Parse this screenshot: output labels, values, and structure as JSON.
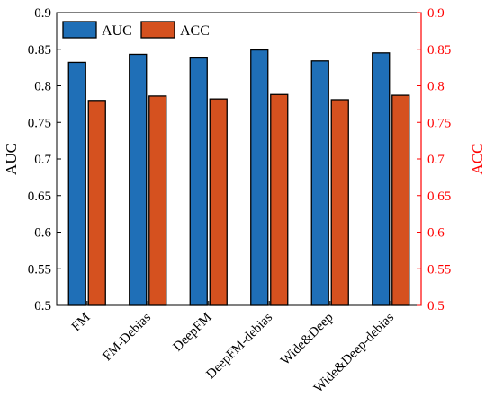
{
  "chart_data": {
    "type": "bar",
    "categories": [
      "FM",
      "FM-Debias",
      "DeepFM",
      "DeepFM-debias",
      "Wide&Deep",
      "Wide&Deep-debias"
    ],
    "series": [
      {
        "name": "AUC",
        "color": "#1F6FB7",
        "axis": "left",
        "values": [
          0.832,
          0.843,
          0.838,
          0.849,
          0.834,
          0.845
        ]
      },
      {
        "name": "ACC",
        "color": "#D5511F",
        "axis": "right",
        "values": [
          0.78,
          0.786,
          0.782,
          0.788,
          0.781,
          0.787
        ]
      }
    ],
    "ylabel_left": "AUC",
    "ylabel_right": "ACC",
    "ylim_left": [
      0.5,
      0.9
    ],
    "ylim_right": [
      0.5,
      0.9
    ],
    "yticks_left": [
      "0.5",
      "0.55",
      "0.6",
      "0.65",
      "0.7",
      "0.75",
      "0.8",
      "0.85",
      "0.9"
    ],
    "yticks_right": [
      "0.5",
      "0.55",
      "0.6",
      "0.65",
      "0.7",
      "0.75",
      "0.8",
      "0.85",
      "0.9"
    ],
    "right_axis_color": "#FF0000",
    "grid": false,
    "legend_position": "top-left"
  }
}
